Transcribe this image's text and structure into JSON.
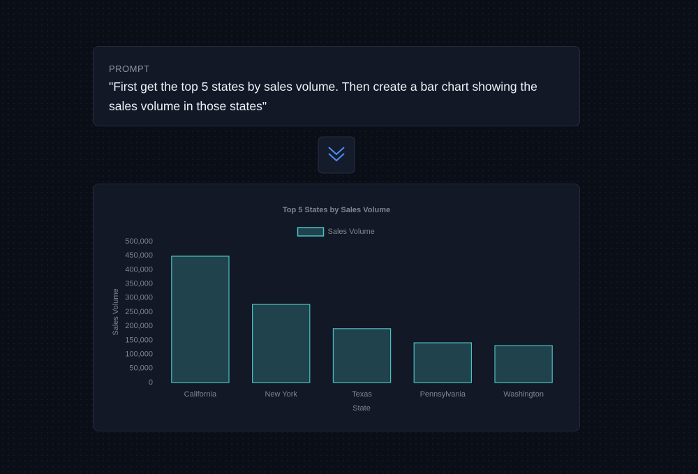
{
  "prompt": {
    "label": "PROMPT",
    "text": "\"First get the top 5 states by sales volume. Then create a bar chart showing the sales volume in those states\""
  },
  "chart_data": {
    "type": "bar",
    "title": "Top 5 States by Sales Volume",
    "categories": [
      "California",
      "New York",
      "Texas",
      "Pennsylvania",
      "Washington"
    ],
    "series": [
      {
        "name": "Sales Volume",
        "color": "#4bc0c0",
        "values": [
          448000,
          277000,
          191000,
          141000,
          131000
        ]
      }
    ],
    "x_label": "State",
    "y_label": "Sales Volume",
    "ylim": [
      0,
      500000
    ],
    "yticks": [
      0,
      {
        "value": 50000,
        "label": "50,000"
      },
      {
        "value": 100000,
        "label": "100,000"
      },
      {
        "value": 150000,
        "label": "150,000"
      },
      {
        "value": 200000,
        "label": "200,000"
      },
      {
        "value": 250000,
        "label": "250,000"
      },
      {
        "value": 300000,
        "label": "300,000"
      },
      {
        "value": 350000,
        "label": "350,000"
      },
      {
        "value": 400000,
        "label": "400,000"
      },
      {
        "value": 450000,
        "label": "450,000"
      },
      {
        "value": 500000,
        "label": "500,000"
      }
    ],
    "grid": false,
    "legend": "top"
  }
}
